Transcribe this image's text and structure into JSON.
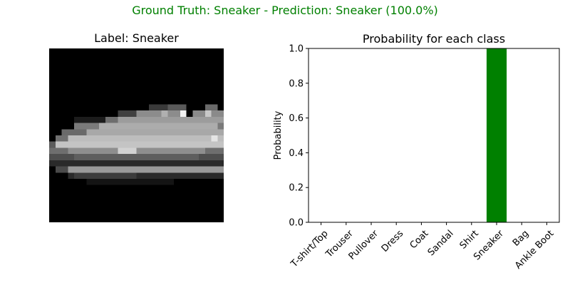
{
  "figure": {
    "suptitle": "Ground Truth: Sneaker - Prediction: Sneaker (100.0%)",
    "suptitle_color": "#008000"
  },
  "image_panel": {
    "title": "Label: Sneaker"
  },
  "chart_data": {
    "type": "bar",
    "title": "Probability for each class",
    "xlabel": "",
    "ylabel": "Probability",
    "categories": [
      "T-shirt/Top",
      "Trouser",
      "Pullover",
      "Dress",
      "Coat",
      "Sandal",
      "Shirt",
      "Sneaker",
      "Bag",
      "Ankle Boot"
    ],
    "values": [
      0,
      0,
      0,
      0,
      0,
      0,
      0,
      1.0,
      0,
      0
    ],
    "ylim": [
      0,
      1.0
    ],
    "yticks": [
      "0.0",
      "0.2",
      "0.4",
      "0.6",
      "0.8",
      "1.0"
    ],
    "bar_color": "#008000",
    "grid": false
  }
}
